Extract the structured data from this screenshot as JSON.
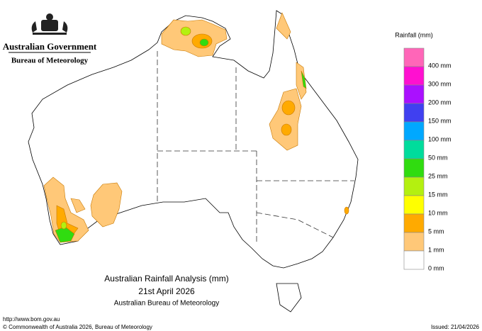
{
  "header": {
    "title": "Australian Government",
    "subtitle": "Bureau of Meteorology"
  },
  "legend": {
    "title": "Rainfall (mm)",
    "items": [
      {
        "label": "400 mm",
        "color": "#ff66b8"
      },
      {
        "label": "300 mm",
        "color": "#ff10d0"
      },
      {
        "label": "200 mm",
        "color": "#aa10ff"
      },
      {
        "label": "150 mm",
        "color": "#4040f0"
      },
      {
        "label": "100 mm",
        "color": "#00a8ff"
      },
      {
        "label": "50 mm",
        "color": "#00dc9c"
      },
      {
        "label": "25 mm",
        "color": "#30dc10"
      },
      {
        "label": "15 mm",
        "color": "#b4f010"
      },
      {
        "label": "10 mm",
        "color": "#ffff00"
      },
      {
        "label": "5 mm",
        "color": "#ffaa00"
      },
      {
        "label": "1 mm",
        "color": "#ffc878"
      },
      {
        "label": "0 mm",
        "color": "#ffffff"
      }
    ]
  },
  "caption": {
    "title": "Australian Rainfall Analysis (mm)",
    "date": "21st April 2026",
    "source": "Australian Bureau of Meteorology"
  },
  "footer": {
    "url": "http://www.bom.gov.au",
    "copyright": "© Commonwealth of Australia 2026, Bureau of Meteorology",
    "issued": "Issued: 21/04/2026"
  }
}
